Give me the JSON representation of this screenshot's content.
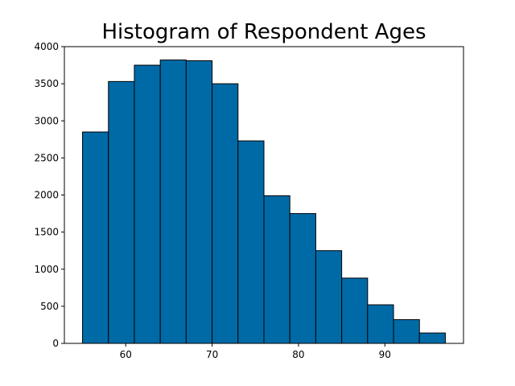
{
  "chart_data": {
    "type": "bar",
    "title": "Histogram of Respondent Ages",
    "xlabel": "",
    "ylabel": "",
    "bin_width": 3,
    "bins": [
      {
        "start": 55,
        "end": 58,
        "count": 2850
      },
      {
        "start": 58,
        "end": 61,
        "count": 3530
      },
      {
        "start": 61,
        "end": 64,
        "count": 3750
      },
      {
        "start": 64,
        "end": 67,
        "count": 3820
      },
      {
        "start": 67,
        "end": 70,
        "count": 3810
      },
      {
        "start": 70,
        "end": 73,
        "count": 3500
      },
      {
        "start": 73,
        "end": 76,
        "count": 2730
      },
      {
        "start": 76,
        "end": 79,
        "count": 1990
      },
      {
        "start": 79,
        "end": 82,
        "count": 1750
      },
      {
        "start": 82,
        "end": 85,
        "count": 1250
      },
      {
        "start": 85,
        "end": 88,
        "count": 880
      },
      {
        "start": 88,
        "end": 91,
        "count": 520
      },
      {
        "start": 91,
        "end": 94,
        "count": 320
      },
      {
        "start": 94,
        "end": 97,
        "count": 140
      }
    ],
    "xlim": [
      52.9,
      99.1
    ],
    "ylim": [
      0,
      4000
    ],
    "xticks": [
      60,
      70,
      80,
      90
    ],
    "yticks": [
      0,
      500,
      1000,
      1500,
      2000,
      2500,
      3000,
      3500,
      4000
    ],
    "grid": false,
    "legend": "none",
    "bar_color": "#006aa7",
    "edge_color": "#000000"
  }
}
